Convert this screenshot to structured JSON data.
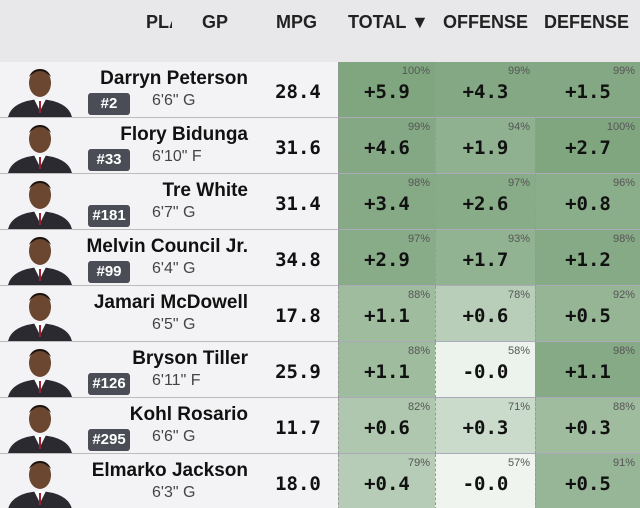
{
  "header": {
    "player": "PLAYER",
    "gp": "GP",
    "mpg": "MPG",
    "total": "TOTAL ▼",
    "offense": "OFFENSE",
    "defense": "DEFENSE"
  },
  "rows": [
    {
      "name": "Darryn Peterson",
      "number": "#2",
      "info": "6'6\" G",
      "mpg": "28.4",
      "total": "+5.9",
      "total_pct": "100%",
      "offense": "+4.3",
      "offense_pct": "99%",
      "defense": "+1.5",
      "defense_pct": "99%"
    },
    {
      "name": "Flory Bidunga",
      "number": "#33",
      "info": "6'10\" F",
      "mpg": "31.6",
      "total": "+4.6",
      "total_pct": "99%",
      "offense": "+1.9",
      "offense_pct": "94%",
      "defense": "+2.7",
      "defense_pct": "100%"
    },
    {
      "name": "Tre White",
      "number": "#181",
      "info": "6'7\" G",
      "mpg": "31.4",
      "total": "+3.4",
      "total_pct": "98%",
      "offense": "+2.6",
      "offense_pct": "97%",
      "defense": "+0.8",
      "defense_pct": "96%"
    },
    {
      "name": "Melvin Council Jr.",
      "number": "#99",
      "info": "6'4\" G",
      "mpg": "34.8",
      "total": "+2.9",
      "total_pct": "97%",
      "offense": "+1.7",
      "offense_pct": "93%",
      "defense": "+1.2",
      "defense_pct": "98%"
    },
    {
      "name": "Jamari McDowell",
      "number": null,
      "info": "6'5\" G",
      "mpg": "17.8",
      "total": "+1.1",
      "total_pct": "88%",
      "offense": "+0.6",
      "offense_pct": "78%",
      "defense": "+0.5",
      "defense_pct": "92%"
    },
    {
      "name": "Bryson Tiller",
      "number": "#126",
      "info": "6'11\" F",
      "mpg": "25.9",
      "total": "+1.1",
      "total_pct": "88%",
      "offense": "-0.0",
      "offense_pct": "58%",
      "defense": "+1.1",
      "defense_pct": "98%"
    },
    {
      "name": "Kohl Rosario",
      "number": "#295",
      "info": "6'6\" G",
      "mpg": "11.7",
      "total": "+0.6",
      "total_pct": "82%",
      "offense": "+0.3",
      "offense_pct": "71%",
      "defense": "+0.3",
      "defense_pct": "88%"
    },
    {
      "name": "Elmarko Jackson",
      "number": null,
      "info": "6'3\" G",
      "mpg": "18.0",
      "total": "+0.4",
      "total_pct": "79%",
      "offense": "-0.0",
      "offense_pct": "57%",
      "defense": "+0.5",
      "defense_pct": "91%"
    }
  ]
}
